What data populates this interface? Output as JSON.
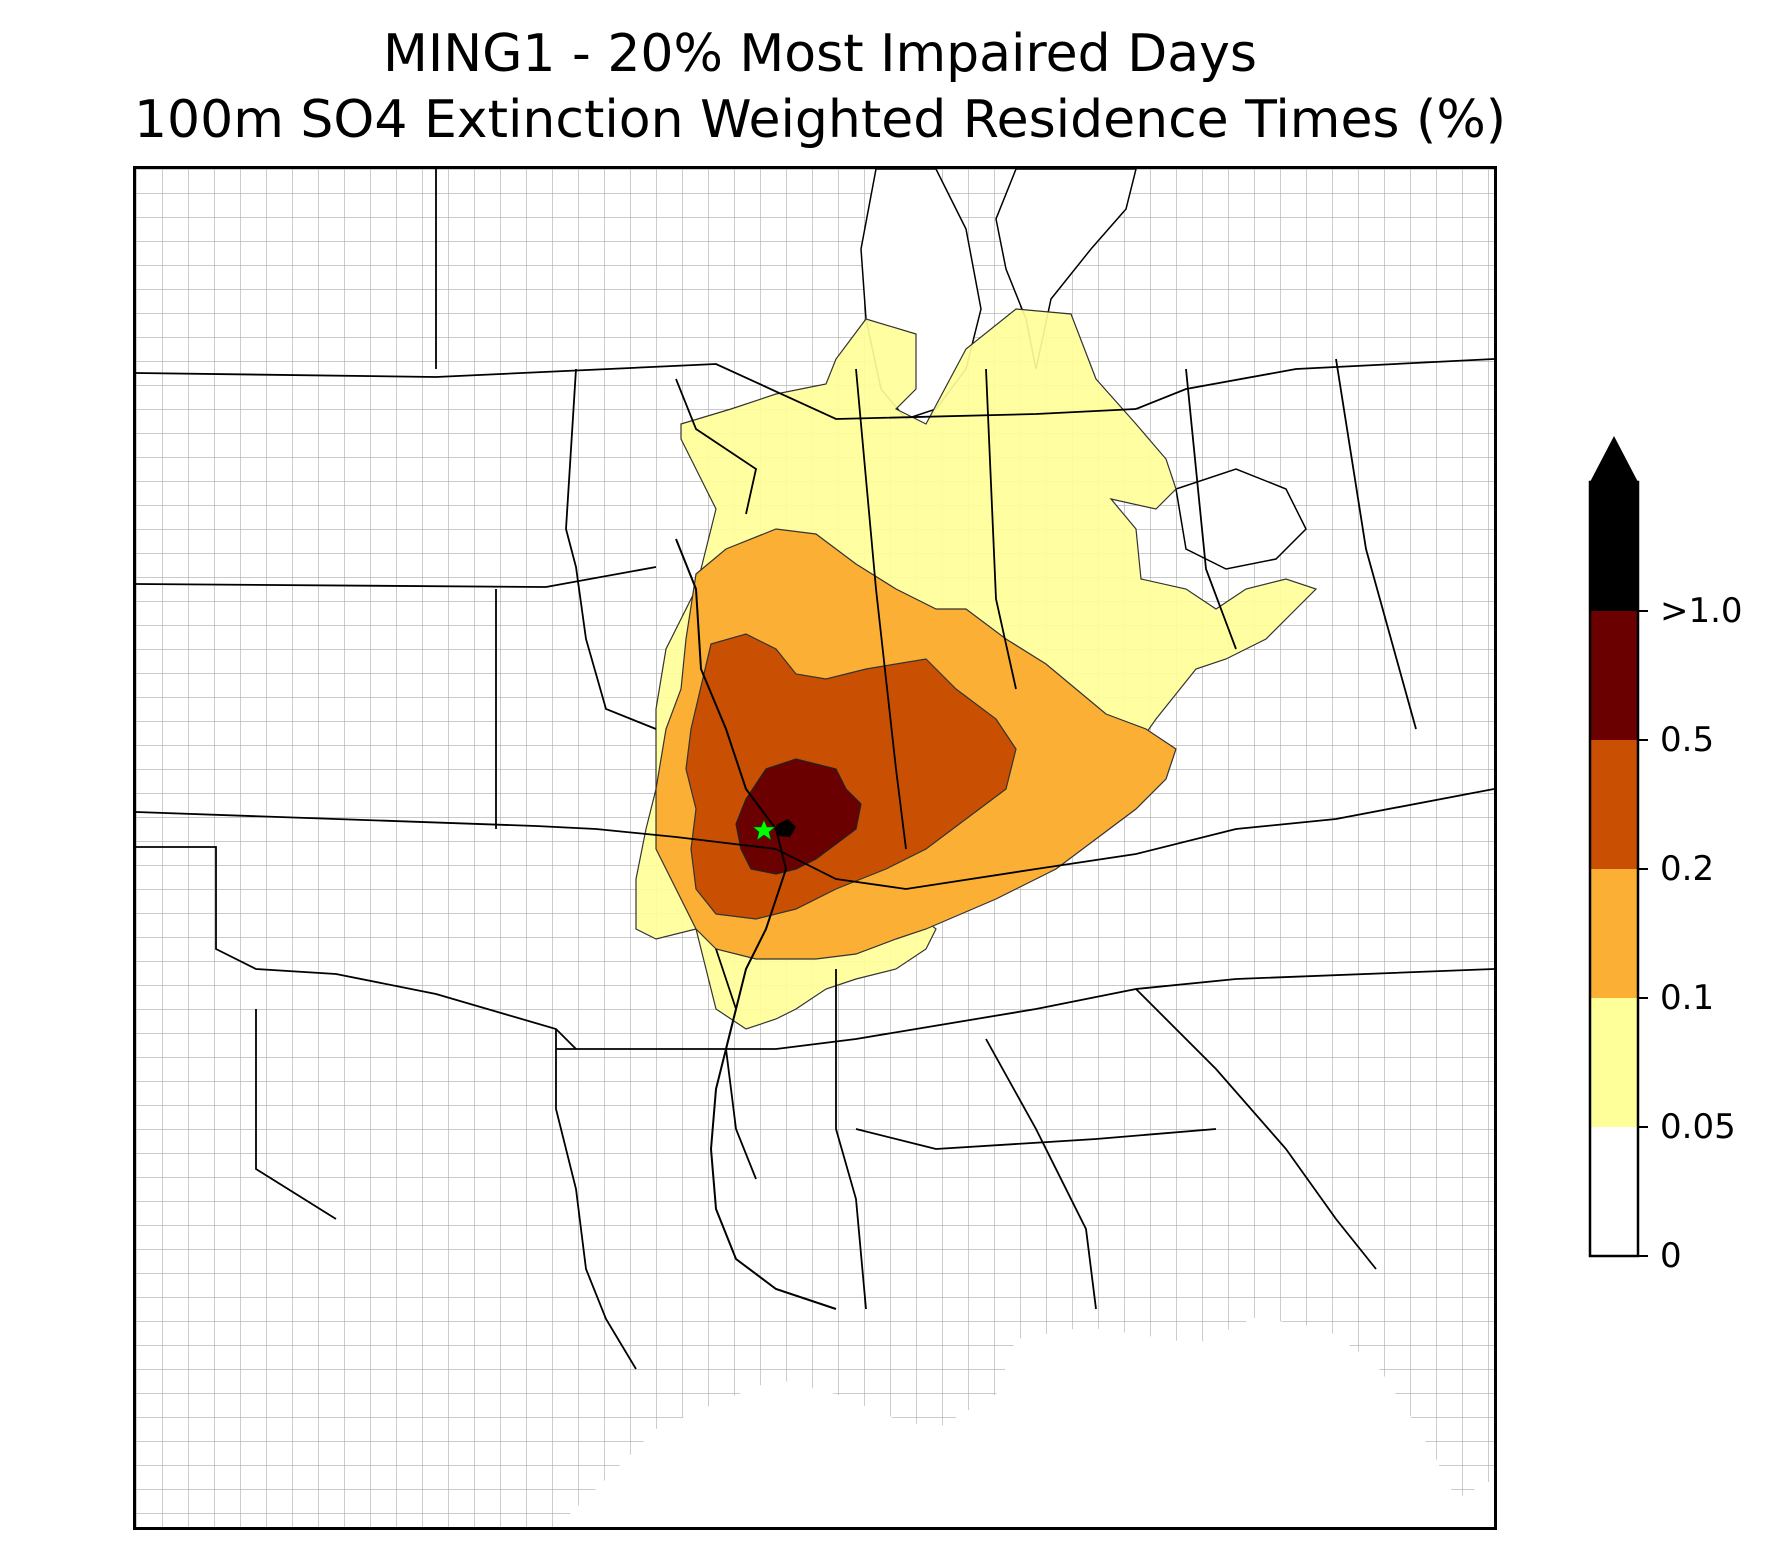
{
  "title": {
    "line1": "MING1 - 20% Most Impaired Days",
    "line2": "100m SO4 Extinction Weighted Residence Times (%)"
  },
  "colorbar": {
    "extend": "max",
    "levels": [
      {
        "from": 0,
        "to": 0.05,
        "color": "#ffffff"
      },
      {
        "from": 0.05,
        "to": 0.1,
        "color": "#ffff99"
      },
      {
        "from": 0.1,
        "to": 0.2,
        "color": "#fbaf34"
      },
      {
        "from": 0.2,
        "to": 0.5,
        "color": "#c94f03"
      },
      {
        "from": 0.5,
        "to": 1.0,
        "color": "#6a0000"
      },
      {
        "from": 1.0,
        "to": null,
        "color": "#000000"
      }
    ],
    "tick_labels": [
      "0",
      "0.05",
      "0.1",
      "0.2",
      "0.5",
      ">1.0"
    ]
  },
  "site_marker": {
    "symbol": "star",
    "color": "#00ff00"
  },
  "map": {
    "projection": "Lambert Conformal",
    "region": "Central and Eastern United States",
    "boundaries": [
      "state",
      "county",
      "coastline"
    ],
    "state_line_color": "#000000",
    "county_line_color": "#999999"
  }
}
